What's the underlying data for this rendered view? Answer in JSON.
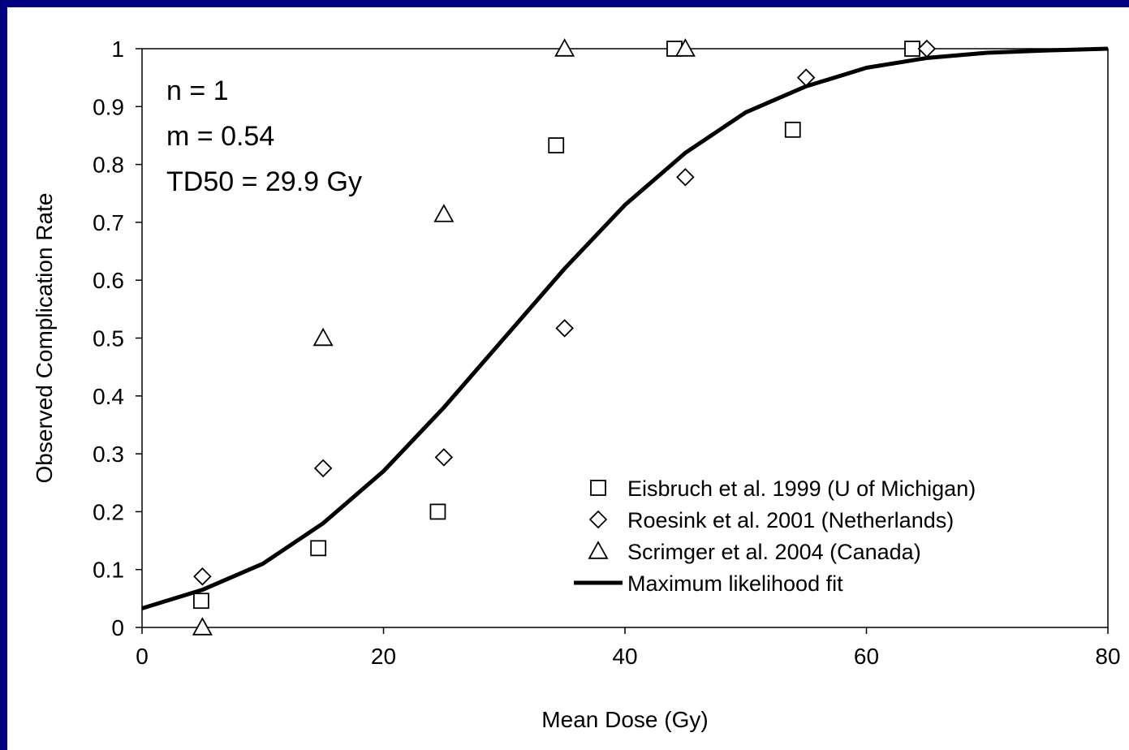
{
  "chart_data": {
    "type": "scatter",
    "xlabel": "Mean Dose (Gy)",
    "ylabel": "Observed Complication Rate",
    "xlim": [
      0,
      80
    ],
    "ylim": [
      0,
      1
    ],
    "xticks": [
      0,
      20,
      40,
      60,
      80
    ],
    "yticks": [
      0,
      0.1,
      0.2,
      0.3,
      0.4,
      0.5,
      0.6,
      0.7,
      0.8,
      0.9,
      1
    ],
    "xtick_labels": [
      "0",
      "20",
      "40",
      "60",
      "80"
    ],
    "ytick_labels": [
      "0",
      "0.1",
      "0.2",
      "0.3",
      "0.4",
      "0.5",
      "0.6",
      "0.7",
      "0.8",
      "0.9",
      "1"
    ],
    "grid": false,
    "legend_position": "bottom-right",
    "annotations": [
      "n = 1",
      "m = 0.54",
      "TD50 = 29.9 Gy"
    ],
    "series": [
      {
        "name": "Eisbruch et al. 1999 (U of Michigan)",
        "marker": "square",
        "x": [
          4.9,
          14.6,
          24.5,
          34.3,
          44.1,
          53.9,
          63.8
        ],
        "y": [
          0.046,
          0.137,
          0.2,
          0.833,
          1.0,
          0.86,
          1.0
        ]
      },
      {
        "name": "Roesink et al. 2001 (Netherlands)",
        "marker": "diamond",
        "x": [
          5.0,
          15.0,
          25.0,
          35.0,
          45.0,
          55.0,
          65.0
        ],
        "y": [
          0.088,
          0.275,
          0.294,
          0.517,
          0.778,
          0.95,
          1.0
        ]
      },
      {
        "name": "Scrimger et al. 2004 (Canada)",
        "marker": "triangle",
        "x": [
          5.0,
          15.0,
          25.0,
          35.0,
          45.0
        ],
        "y": [
          0.0,
          0.5,
          0.714,
          1.0,
          1.0
        ]
      },
      {
        "name": "Maximum likelihood fit",
        "marker": "line",
        "x": [
          0,
          5,
          10,
          15,
          20,
          25,
          30,
          35,
          40,
          45,
          50,
          55,
          60,
          65,
          70,
          75,
          80
        ],
        "y": [
          0.033,
          0.065,
          0.11,
          0.18,
          0.27,
          0.38,
          0.5,
          0.62,
          0.73,
          0.82,
          0.89,
          0.935,
          0.967,
          0.984,
          0.993,
          0.997,
          1.0
        ]
      }
    ]
  }
}
